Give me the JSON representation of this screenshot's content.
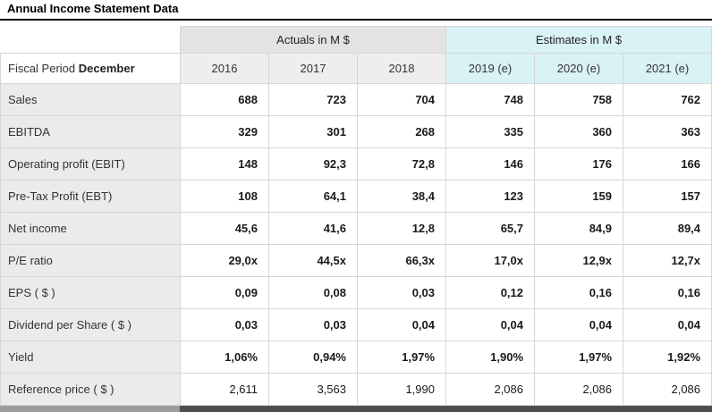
{
  "title": "Annual Income Statement Data",
  "table": {
    "group_headers": [
      {
        "label": "Actuals in M $",
        "colspan": 3
      },
      {
        "label": "Estimates in M $",
        "colspan": 3
      }
    ],
    "fiscal_label": "Fiscal Period",
    "fiscal_value": "December",
    "year_headers": [
      "2016",
      "2017",
      "2018",
      "2019 (e)",
      "2020 (e)",
      "2021 (e)"
    ],
    "rows": [
      {
        "label": "Sales",
        "values": [
          "688",
          "723",
          "704",
          "748",
          "758",
          "762"
        ],
        "bold": true
      },
      {
        "label": "EBITDA",
        "values": [
          "329",
          "301",
          "268",
          "335",
          "360",
          "363"
        ],
        "bold": true
      },
      {
        "label": "Operating profit (EBIT)",
        "values": [
          "148",
          "92,3",
          "72,8",
          "146",
          "176",
          "166"
        ],
        "bold": true
      },
      {
        "label": "Pre-Tax Profit (EBT)",
        "values": [
          "108",
          "64,1",
          "38,4",
          "123",
          "159",
          "157"
        ],
        "bold": true
      },
      {
        "label": "Net income",
        "values": [
          "45,6",
          "41,6",
          "12,8",
          "65,7",
          "84,9",
          "89,4"
        ],
        "bold": true
      },
      {
        "label": "P/E ratio",
        "values": [
          "29,0x",
          "44,5x",
          "66,3x",
          "17,0x",
          "12,9x",
          "12,7x"
        ],
        "bold": true
      },
      {
        "label": "EPS ( $ )",
        "values": [
          "0,09",
          "0,08",
          "0,03",
          "0,12",
          "0,16",
          "0,16"
        ],
        "bold": true
      },
      {
        "label": "Dividend per Share ( $ )",
        "values": [
          "0,03",
          "0,03",
          "0,04",
          "0,04",
          "0,04",
          "0,04"
        ],
        "bold": true
      },
      {
        "label": "Yield",
        "values": [
          "1,06%",
          "0,94%",
          "1,97%",
          "1,90%",
          "1,97%",
          "1,92%"
        ],
        "bold": true
      },
      {
        "label": "Reference price ( $ )",
        "values": [
          "2,611",
          "3,563",
          "1,990",
          "2,086",
          "2,086",
          "2,086"
        ],
        "bold": false
      }
    ]
  },
  "colors": {
    "actuals_group_bg": "#e3e3e3",
    "actuals_year_bg": "#eeeeee",
    "estimates_bg": "#d9f2f6",
    "label_bg": "#ebebeb",
    "border": "#d6d6d6",
    "strip_left": "#9c9c9c",
    "strip_right": "#4f4f4f"
  }
}
